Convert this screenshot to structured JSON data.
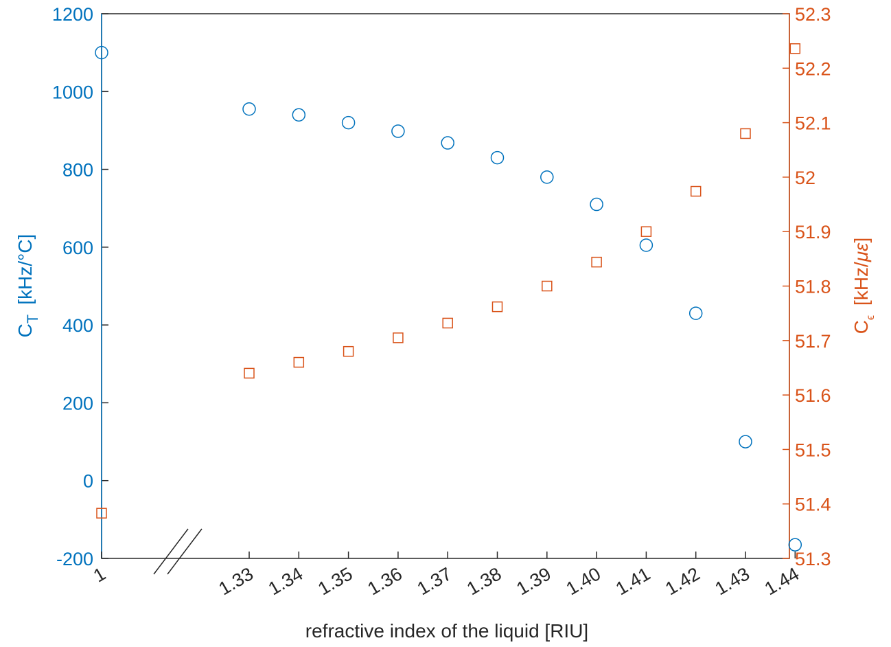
{
  "chart_data": {
    "type": "scatter",
    "xlabel": "refractive index of the liquid  [RIU]",
    "x_categories": [
      "1",
      "1.33",
      "1.34",
      "1.35",
      "1.36",
      "1.37",
      "1.38",
      "1.39",
      "1.40",
      "1.41",
      "1.42",
      "1.43",
      "1.44"
    ],
    "axis_break_between": [
      "1",
      "1.33"
    ],
    "y_left": {
      "label_main": "C",
      "label_sub": "T",
      "label_unit": "[kHz/°C]",
      "ylim": [
        -200,
        1200
      ],
      "ticks": [
        -200,
        0,
        200,
        400,
        600,
        800,
        1000,
        1200
      ],
      "color": "#0072BD"
    },
    "y_right": {
      "label_main": "C",
      "label_sub": "ϵ",
      "label_unit": "[kHz/",
      "label_unit_italic": "με",
      "label_unit_end": "]",
      "ylim": [
        51.3,
        52.3
      ],
      "ticks": [
        "51.3",
        "51.4",
        "51.5",
        "51.6",
        "51.7",
        "51.8",
        "51.9",
        "52",
        "52.1",
        "52.2",
        "52.3"
      ],
      "color": "#D95319"
    },
    "series": [
      {
        "marker": "circle",
        "axis": "left",
        "color": "#0072BD",
        "x": [
          "1",
          "1.33",
          "1.34",
          "1.35",
          "1.36",
          "1.37",
          "1.38",
          "1.39",
          "1.40",
          "1.41",
          "1.42",
          "1.43",
          "1.44"
        ],
        "values": [
          1100,
          955,
          940,
          920,
          898,
          868,
          830,
          780,
          710,
          605,
          430,
          100,
          -165
        ]
      },
      {
        "marker": "square",
        "axis": "right",
        "color": "#D95319",
        "x": [
          "1",
          "1.33",
          "1.34",
          "1.35",
          "1.36",
          "1.37",
          "1.38",
          "1.39",
          "1.40",
          "1.41",
          "1.42",
          "1.43",
          "1.44"
        ],
        "values": [
          51.383,
          51.64,
          51.66,
          51.68,
          51.705,
          51.732,
          51.762,
          51.8,
          51.844,
          51.9,
          51.974,
          52.08,
          52.236
        ]
      }
    ]
  }
}
